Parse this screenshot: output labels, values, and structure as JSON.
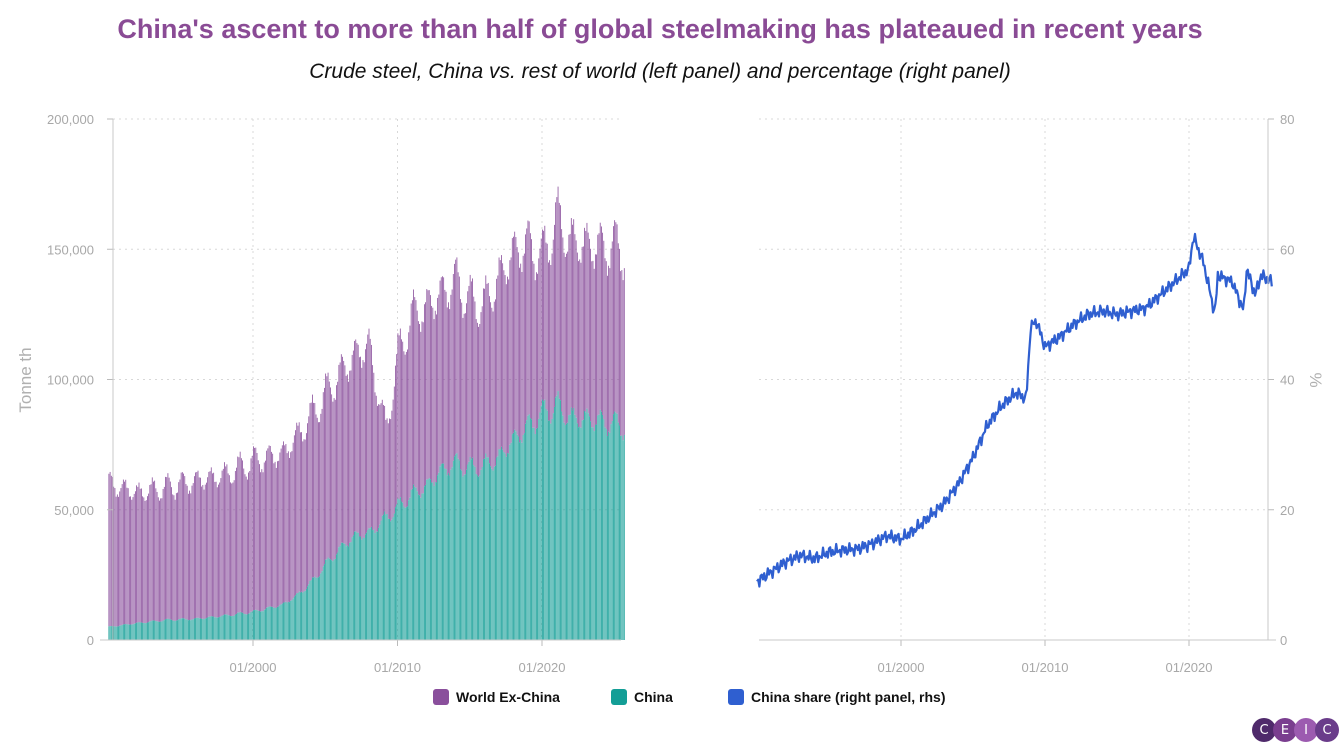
{
  "colors": {
    "world_ex_china": "#8a4f9c",
    "china": "#139e96",
    "china_share": "#2f5fd0",
    "title": "#8a4b95",
    "grid": "#d8d8d8",
    "logo": [
      "#4f2a6b",
      "#7a3e8f",
      "#9c5bb0",
      "#6a3c8a"
    ]
  },
  "chart_data": [
    {
      "panel": "left",
      "type": "bar",
      "stacked": true,
      "title": "China's ascent to more than half of global steelmaking has plateaued in recent years",
      "subtitle": "Crude steel, China vs. rest of world (left panel) and percentage (right panel)",
      "ylabel": "Tonne th",
      "ylim": [
        0,
        200000
      ],
      "yticks": [
        0,
        50000,
        100000,
        150000,
        200000
      ],
      "ytick_labels": [
        "0",
        "50,000",
        "100,000",
        "150,000",
        "200,000"
      ],
      "xlim": [
        1990.0,
        2025.75
      ],
      "xticks": [
        2000,
        2010,
        2020
      ],
      "xtick_labels": [
        "01/2000",
        "01/2010",
        "01/2020"
      ],
      "grid": true,
      "x_frequency": "monthly",
      "series": [
        {
          "name": "China",
          "anchors": [
            [
              1990,
              5000
            ],
            [
              1992,
              6500
            ],
            [
              1994,
              7700
            ],
            [
              1996,
              8100
            ],
            [
              1998,
              9300
            ],
            [
              2000,
              10800
            ],
            [
              2002,
              13500
            ],
            [
              2003,
              17000
            ],
            [
              2004,
              22000
            ],
            [
              2005,
              29000
            ],
            [
              2006,
              35000
            ],
            [
              2007,
              40000
            ],
            [
              2008,
              41000
            ],
            [
              2009,
              46000
            ],
            [
              2010,
              51000
            ],
            [
              2011,
              56000
            ],
            [
              2012,
              59000
            ],
            [
              2013,
              65000
            ],
            [
              2014,
              68000
            ],
            [
              2015,
              66000
            ],
            [
              2016,
              67000
            ],
            [
              2017,
              70000
            ],
            [
              2018,
              77000
            ],
            [
              2019,
              82000
            ],
            [
              2020,
              87000
            ],
            [
              2021,
              90000
            ],
            [
              2022,
              85000
            ],
            [
              2023,
              85000
            ],
            [
              2024,
              84000
            ],
            [
              2025,
              83000
            ],
            [
              2025.75,
              82000
            ]
          ],
          "seasonal_amplitude": 0.05
        },
        {
          "name": "World Ex-China",
          "anchors": [
            [
              1990,
              55000
            ],
            [
              1992,
              50000
            ],
            [
              1994,
              51000
            ],
            [
              1996,
              53000
            ],
            [
              1998,
              54000
            ],
            [
              2000,
              58000
            ],
            [
              2002,
              58000
            ],
            [
              2004,
              64000
            ],
            [
              2006,
              67000
            ],
            [
              2008,
              72000
            ],
            [
              2008.8,
              45000
            ],
            [
              2009.2,
              34000
            ],
            [
              2010,
              58000
            ],
            [
              2011,
              69000
            ],
            [
              2012,
              69000
            ],
            [
              2013,
              68000
            ],
            [
              2014,
              70000
            ],
            [
              2015,
              64000
            ],
            [
              2016,
              62000
            ],
            [
              2017,
              69000
            ],
            [
              2018,
              72000
            ],
            [
              2019,
              70000
            ],
            [
              2020,
              60000
            ],
            [
              2021,
              72000
            ],
            [
              2022,
              68000
            ],
            [
              2023,
              67000
            ],
            [
              2024,
              67000
            ],
            [
              2025,
              68000
            ],
            [
              2025.75,
              68000
            ]
          ],
          "seasonal_amplitude": 0.07
        }
      ]
    },
    {
      "panel": "right",
      "type": "line",
      "ylabel": "%",
      "ylim": [
        0,
        80
      ],
      "yticks": [
        0,
        20,
        40,
        60,
        80
      ],
      "ytick_labels": [
        "0",
        "20",
        "40",
        "60",
        "80"
      ],
      "xlim": [
        1990.0,
        2025.75
      ],
      "xticks": [
        2000,
        2010,
        2020
      ],
      "xtick_labels": [
        "01/2000",
        "01/2010",
        "01/2020"
      ],
      "grid": true,
      "series": [
        {
          "name": "China share (right panel, rhs)",
          "points": [
            [
              1990,
              9.0
            ],
            [
              1991,
              10.5
            ],
            [
              1992,
              12.0
            ],
            [
              1993,
              13.0
            ],
            [
              1994,
              12.5
            ],
            [
              1995,
              13.5
            ],
            [
              1996,
              13.8
            ],
            [
              1997,
              14.0
            ],
            [
              1998,
              14.8
            ],
            [
              1999,
              16.0
            ],
            [
              2000,
              15.5
            ],
            [
              2001,
              17.0
            ],
            [
              2002,
              19.0
            ],
            [
              2003,
              21.0
            ],
            [
              2004,
              24.0
            ],
            [
              2005,
              28.0
            ],
            [
              2006,
              33.0
            ],
            [
              2007,
              36.0
            ],
            [
              2008,
              38.0
            ],
            [
              2008.7,
              37.0
            ],
            [
              2009.0,
              48.0
            ],
            [
              2009.4,
              49.0
            ],
            [
              2010,
              45.0
            ],
            [
              2011,
              46.5
            ],
            [
              2012,
              48.5
            ],
            [
              2013,
              50.0
            ],
            [
              2014,
              50.5
            ],
            [
              2015,
              50.0
            ],
            [
              2016,
              50.5
            ],
            [
              2017,
              51.0
            ],
            [
              2018,
              53.0
            ],
            [
              2019,
              55.0
            ],
            [
              2020,
              57.0
            ],
            [
              2020.3,
              62.0
            ],
            [
              2021,
              58.0
            ],
            [
              2021.8,
              50.0
            ],
            [
              2022,
              56.0
            ],
            [
              2023,
              55.0
            ],
            [
              2023.8,
              50.5
            ],
            [
              2024,
              57.0
            ],
            [
              2024.6,
              53.0
            ],
            [
              2025,
              56.0
            ],
            [
              2025.75,
              55.0
            ]
          ],
          "noise": 0.7
        }
      ]
    }
  ],
  "legend": {
    "world_ex_china": "World Ex-China",
    "china": "China",
    "china_share": "China share (right panel, rhs)"
  },
  "logo": {
    "letters": [
      "C",
      "E",
      "I",
      "C"
    ]
  }
}
